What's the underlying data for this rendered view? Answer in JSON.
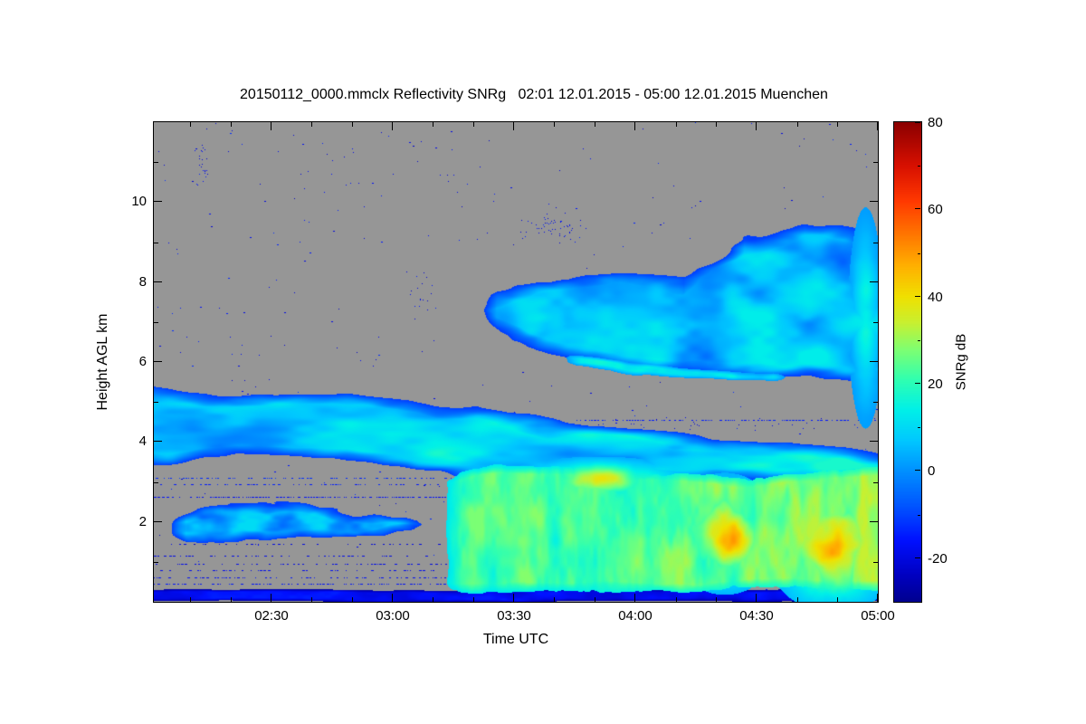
{
  "chart_data": {
    "type": "heatmap",
    "title": "20150112_0000.mmclx Reflectivity SNRg   02:01 12.01.2015 - 05:00 12.01.2015 Muenchen",
    "background_color": "#969696",
    "x_axis": {
      "label": "Time UTC",
      "range_hours": [
        2.0167,
        5.0
      ],
      "ticks": [
        {
          "t": 2.5,
          "label": "02:30"
        },
        {
          "t": 3.0,
          "label": "03:00"
        },
        {
          "t": 3.5,
          "label": "03:30"
        },
        {
          "t": 4.0,
          "label": "04:00"
        },
        {
          "t": 4.5,
          "label": "04:30"
        },
        {
          "t": 5.0,
          "label": "05:00"
        }
      ],
      "minor_step_minutes": 10
    },
    "y_axis": {
      "label": "Height AGL km",
      "range_km": [
        0,
        12
      ],
      "ticks": [
        2,
        4,
        6,
        8,
        10
      ],
      "minor": [
        1,
        3,
        5,
        7,
        9,
        11
      ]
    },
    "colorbar": {
      "label": "SNRg dB",
      "range_db": [
        -30,
        80
      ],
      "ticks": [
        80,
        60,
        40,
        20,
        0,
        -20
      ],
      "minor": [
        70,
        50,
        30,
        10,
        -10
      ]
    },
    "colormap": [
      {
        "v": -30,
        "c": "#00008F"
      },
      {
        "v": -24,
        "c": "#0000C0"
      },
      {
        "v": -16,
        "c": "#0010FF"
      },
      {
        "v": -8,
        "c": "#0055FF"
      },
      {
        "v": 0,
        "c": "#0090FF"
      },
      {
        "v": 7,
        "c": "#00C8FF"
      },
      {
        "v": 14,
        "c": "#00F0E8"
      },
      {
        "v": 21,
        "c": "#30FFB0"
      },
      {
        "v": 28,
        "c": "#80FF70"
      },
      {
        "v": 34,
        "c": "#C8F030"
      },
      {
        "v": 40,
        "c": "#F0E000"
      },
      {
        "v": 47,
        "c": "#FFB000"
      },
      {
        "v": 54,
        "c": "#FF7800"
      },
      {
        "v": 62,
        "c": "#FF3800"
      },
      {
        "v": 70,
        "c": "#D81000"
      },
      {
        "v": 80,
        "c": "#8B0000"
      }
    ],
    "features": [
      {
        "name": "early-mid-cloud",
        "kind": "band",
        "t": [
          2.017,
          2.35,
          2.75,
          3.1,
          3.35,
          3.6,
          3.95,
          4.4,
          5.0
        ],
        "top": [
          5.35,
          5.28,
          5.32,
          5.15,
          4.95,
          4.6,
          4.35,
          4.05,
          3.75
        ],
        "bot": [
          3.35,
          3.6,
          3.55,
          3.25,
          3.15,
          3.1,
          3.05,
          3.0,
          2.95
        ],
        "base": -14,
        "peak": 16,
        "edge": 0.35,
        "wob": 0.45,
        "txt": 2.6,
        "txh": 1.5,
        "thr": 0.1,
        "tgrad": 0,
        "seed": 11
      },
      {
        "name": "early-low-cloud",
        "kind": "band",
        "t": [
          2.07,
          2.3,
          2.6,
          2.95,
          3.18
        ],
        "top": [
          2.3,
          2.55,
          2.5,
          2.3,
          2.05
        ],
        "bot": [
          1.55,
          1.4,
          1.5,
          1.55,
          1.75
        ],
        "base": -18,
        "peak": 9,
        "edge": 0.3,
        "wob": 0.5,
        "txt": 7,
        "txh": 2.2,
        "thr": 0.26,
        "tgrad": 0,
        "seed": 23
      },
      {
        "name": "precip-layer",
        "kind": "band",
        "t": [
          3.2,
          3.45,
          3.8,
          4.1,
          4.4,
          4.7,
          5.0
        ],
        "top": [
          3.25,
          3.55,
          3.45,
          3.35,
          3.2,
          3.35,
          3.5
        ],
        "bot": [
          0.22,
          0.2,
          0.2,
          0.2,
          0.2,
          0.2,
          0.2
        ],
        "base": 7,
        "peak": 26,
        "edge": 0.3,
        "wob": 0.3,
        "txt": 15,
        "txh": 0.9,
        "thr": 0.24,
        "tgrad": 4,
        "seed": 37
      },
      {
        "name": "upper-cloud",
        "kind": "band",
        "t": [
          3.35,
          3.6,
          3.9,
          4.2,
          4.45,
          4.7,
          5.0
        ],
        "top": [
          7.6,
          8.05,
          8.3,
          8.15,
          9.2,
          9.45,
          9.15
        ],
        "bot": [
          7.0,
          6.3,
          5.9,
          5.6,
          5.55,
          5.5,
          5.35
        ],
        "base": -16,
        "peak": 12,
        "edge": 0.4,
        "wob": 0.55,
        "txt": 4.5,
        "txh": 1.2,
        "thr": 0.18,
        "tgrad": 0,
        "seed": 51
      },
      {
        "name": "upper-cloud-base-lining",
        "kind": "band",
        "t": [
          3.7,
          4.0,
          4.35,
          4.65
        ],
        "top": [
          6.2,
          5.95,
          5.85,
          5.75
        ],
        "bot": [
          5.85,
          5.6,
          5.55,
          5.5
        ],
        "base": -2,
        "peak": 16,
        "edge": 0.12,
        "wob": 0.25,
        "txt": 8,
        "txh": 2,
        "thr": 0.2,
        "tgrad": 0,
        "seed": 63
      },
      {
        "name": "surface-clutter-band",
        "kind": "band",
        "t": [
          2.017,
          5.0
        ],
        "top": [
          0.3,
          0.3
        ],
        "bot": [
          0.0,
          0.0
        ],
        "base": -27,
        "peak": -15,
        "edge": 0.06,
        "wob": 0.1,
        "txt": 8,
        "txh": 3,
        "thr": 0,
        "tgrad": 0,
        "seed": 77
      },
      {
        "name": "orange-core-a",
        "kind": "blob",
        "tc": 4.37,
        "hc": 1.7,
        "rt": 0.16,
        "rh": 1.05,
        "peak": 47,
        "txt": 10,
        "txh": 1.2,
        "seed": 81
      },
      {
        "name": "orange-core-b",
        "kind": "blob",
        "tc": 4.82,
        "hc": 1.4,
        "rt": 0.2,
        "rh": 1.15,
        "peak": 46,
        "txt": 10,
        "txh": 1.2,
        "seed": 93
      },
      {
        "name": "yellow-patch-mid",
        "kind": "blob",
        "tc": 3.85,
        "hc": 3.05,
        "rt": 0.28,
        "rh": 0.4,
        "peak": 33,
        "txt": 9,
        "txh": 1.5,
        "seed": 101
      },
      {
        "name": "right-edge-streak",
        "kind": "blob",
        "tc": 4.95,
        "hc": 7.1,
        "rt": 0.05,
        "rh": 1.9,
        "peak": 17,
        "txt": 6,
        "txh": 1.5,
        "seed": 113
      }
    ],
    "artifact_rows": [
      {
        "h": 2.62,
        "t0": 2.017,
        "t1": 3.35,
        "p": 0.55,
        "v": -17
      },
      {
        "h": 2.95,
        "t0": 2.017,
        "t1": 3.3,
        "p": 0.3,
        "v": -15
      },
      {
        "h": 3.1,
        "t0": 2.017,
        "t1": 3.25,
        "p": 0.35,
        "v": -13
      },
      {
        "h": 1.45,
        "t0": 2.017,
        "t1": 3.2,
        "p": 0.16,
        "v": -20
      },
      {
        "h": 1.15,
        "t0": 2.017,
        "t1": 3.2,
        "p": 0.2,
        "v": -19
      },
      {
        "h": 0.95,
        "t0": 2.017,
        "t1": 3.25,
        "p": 0.24,
        "v": -19
      },
      {
        "h": 0.8,
        "t0": 2.017,
        "t1": 3.25,
        "p": 0.2,
        "v": -18
      },
      {
        "h": 0.62,
        "t0": 2.017,
        "t1": 3.3,
        "p": 0.3,
        "v": -17
      },
      {
        "h": 0.45,
        "t0": 2.017,
        "t1": 3.3,
        "p": 0.35,
        "v": -16
      },
      {
        "h": 4.55,
        "t0": 3.75,
        "t1": 5.0,
        "p": 0.4,
        "v": -15
      },
      {
        "h": 4.62,
        "t0": 3.05,
        "t1": 3.45,
        "p": 0.18,
        "v": -17
      }
    ],
    "speckle": {
      "uniform_count": 300,
      "clusters": [
        {
          "t": 2.21,
          "h": 11.0,
          "rt": 0.02,
          "rh": 0.7,
          "n": 28
        },
        {
          "t": 2.85,
          "h": 10.4,
          "rt": 0.45,
          "rh": 1.0,
          "n": 30
        },
        {
          "t": 3.65,
          "h": 9.4,
          "rt": 0.1,
          "rh": 0.3,
          "n": 55
        },
        {
          "t": 3.1,
          "h": 7.6,
          "rt": 0.05,
          "rh": 0.5,
          "n": 18
        },
        {
          "t": 4.4,
          "h": 4.4,
          "rt": 0.5,
          "rh": 0.15,
          "n": 40
        },
        {
          "t": 2.5,
          "h": 6.4,
          "rt": 0.3,
          "rh": 0.3,
          "n": 12
        }
      ]
    }
  }
}
